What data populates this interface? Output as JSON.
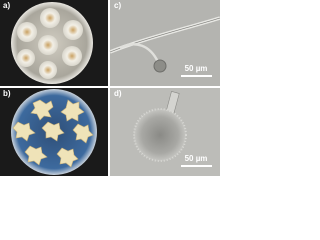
{
  "panels": [
    {
      "label": "a)"
    },
    {
      "label": "b)"
    },
    {
      "label": "c)",
      "scale_bar": "50 µm"
    },
    {
      "label": "d)",
      "scale_bar": "50 µm"
    }
  ]
}
